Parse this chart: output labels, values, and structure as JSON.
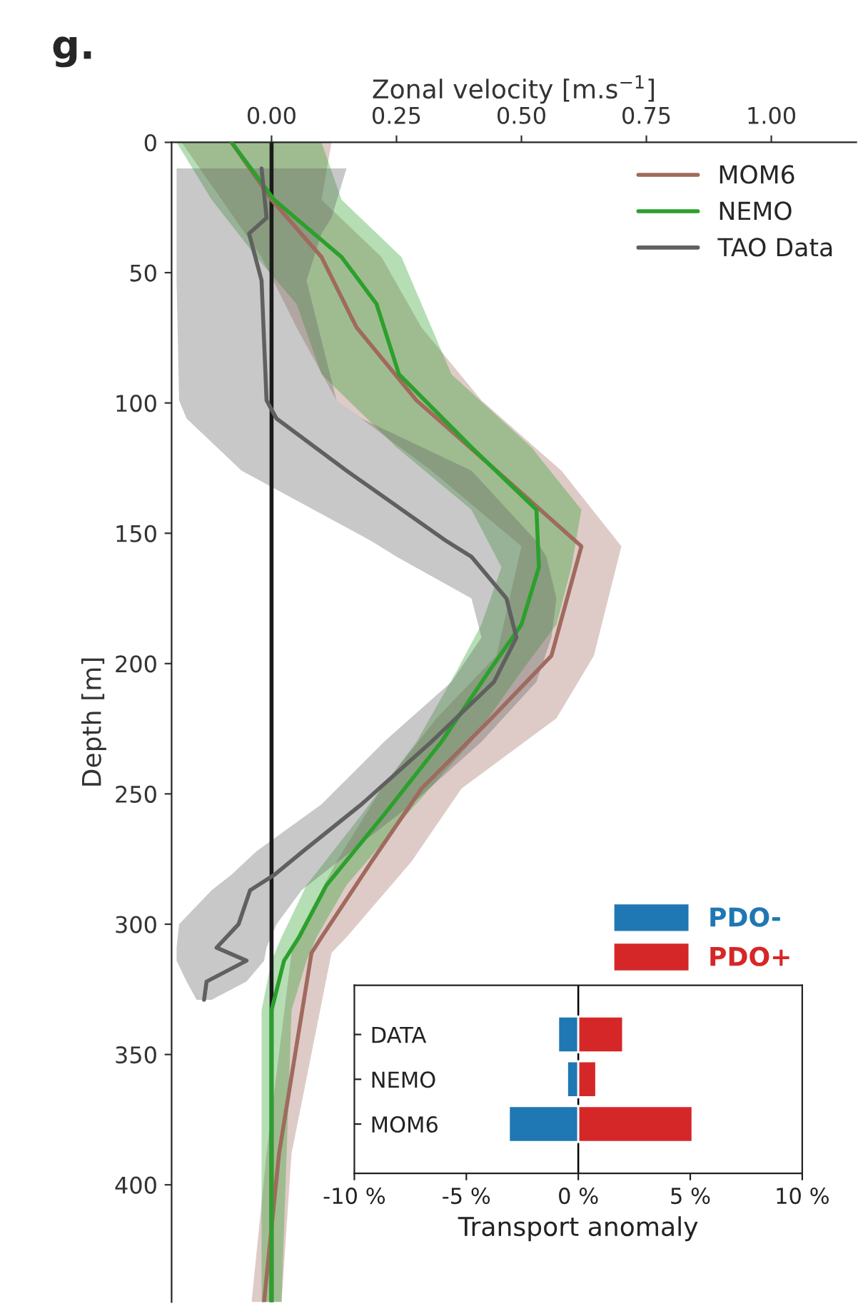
{
  "chart_data": [
    {
      "type": "line",
      "orientation": "horizontal",
      "title": "g.",
      "xlabel": "Zonal velocity [m.s$^{−1}$]",
      "ylabel": "Depth [m]",
      "xlim": [
        -0.2,
        1.17
      ],
      "xticks": [
        {
          "value": 0,
          "label": "0.00"
        },
        {
          "value": 0.25,
          "label": "0.25"
        },
        {
          "value": 0.5,
          "label": "0.50"
        },
        {
          "value": 0.75,
          "label": "0.75"
        },
        {
          "value": 1.0,
          "label": "1.00"
        }
      ],
      "ylim": [
        445,
        0
      ],
      "yticks": [
        0,
        50,
        100,
        150,
        200,
        250,
        300,
        350,
        400
      ],
      "legend": "top right",
      "grid": false,
      "ref_lines": [
        {
          "axis": "x",
          "value": 0,
          "color": "#1a1a1a"
        }
      ],
      "series": [
        {
          "name": "MOM6",
          "color": "#a06a5e",
          "x": [
            0,
            22,
            44,
            71,
            99,
            126,
            155,
            197,
            221,
            248,
            276,
            305,
            311,
            388,
            445
          ],
          "values": [
            -0.08,
            0.0,
            0.1,
            0.17,
            0.29,
            0.45,
            0.62,
            0.56,
            0.44,
            0.3,
            0.2,
            0.1,
            0.08,
            0.015,
            -0.015
          ],
          "lower": [
            -0.18,
            -0.1,
            -0.02,
            0.05,
            0.13,
            0.32,
            0.5,
            0.45,
            0.33,
            0.22,
            0.13,
            0.05,
            0.04,
            -0.01,
            -0.04
          ],
          "upper": [
            0.12,
            0.1,
            0.22,
            0.3,
            0.42,
            0.58,
            0.7,
            0.645,
            0.57,
            0.38,
            0.28,
            0.15,
            0.12,
            0.04,
            0.02
          ]
        },
        {
          "name": "NEMO",
          "color": "#2ca02c",
          "x": [
            0,
            22,
            44,
            62,
            89,
            117,
            141,
            163,
            185,
            203,
            230,
            258,
            285,
            305,
            314,
            333,
            445
          ],
          "values": [
            -0.08,
            0.005,
            0.14,
            0.21,
            0.255,
            0.4,
            0.53,
            0.535,
            0.5,
            0.435,
            0.34,
            0.225,
            0.11,
            0.055,
            0.025,
            0.0,
            0.0
          ],
          "lower": [
            -0.19,
            -0.12,
            -0.03,
            0.05,
            0.1,
            0.25,
            0.4,
            0.46,
            0.42,
            0.37,
            0.29,
            0.18,
            0.07,
            0.02,
            0.0,
            -0.02,
            -0.02
          ],
          "upper": [
            0.1,
            0.14,
            0.26,
            0.3,
            0.36,
            0.52,
            0.62,
            0.6,
            0.57,
            0.5,
            0.4,
            0.27,
            0.15,
            0.09,
            0.07,
            0.04,
            0.02
          ]
        },
        {
          "name": "TAO Data",
          "color": "#606060",
          "x": [
            10,
            29,
            35,
            53,
            99,
            106,
            126,
            153,
            159,
            175,
            190,
            207,
            230,
            254,
            272,
            281,
            287,
            300,
            309,
            314,
            322,
            329
          ],
          "values": [
            -0.02,
            -0.01,
            -0.045,
            -0.02,
            -0.01,
            0.01,
            0.15,
            0.35,
            0.4,
            0.47,
            0.49,
            0.445,
            0.32,
            0.18,
            0.063,
            0.006,
            -0.043,
            -0.066,
            -0.11,
            -0.05,
            -0.13,
            -0.135
          ],
          "lower": [
            -0.19,
            -0.19,
            -0.19,
            -0.19,
            -0.185,
            -0.17,
            -0.06,
            0.2,
            0.25,
            0.4,
            0.42,
            0.36,
            0.225,
            0.1,
            -0.03,
            -0.08,
            -0.12,
            -0.185,
            -0.19,
            -0.19,
            -0.17,
            -0.15
          ],
          "upper": [
            0.15,
            0.12,
            0.1,
            0.07,
            0.13,
            0.18,
            0.4,
            0.53,
            0.55,
            0.57,
            0.56,
            0.53,
            0.42,
            0.28,
            0.16,
            0.1,
            0.06,
            0.01,
            -0.01,
            -0.015,
            -0.05,
            -0.12
          ]
        }
      ]
    },
    {
      "type": "bar",
      "orientation": "horizontal",
      "xlabel": "Transport anomaly",
      "categories": [
        "DATA",
        "NEMO",
        "MOM6"
      ],
      "xlim": [
        -10,
        10
      ],
      "xticks": [
        {
          "value": -10,
          "label": "-10 %"
        },
        {
          "value": -5,
          "label": "-5 %"
        },
        {
          "value": 0,
          "label": "0 %"
        },
        {
          "value": 5,
          "label": "5 %"
        },
        {
          "value": 10,
          "label": "10 %"
        }
      ],
      "legend": "top right",
      "grid": false,
      "stacked": true,
      "ref_lines": [
        {
          "axis": "x",
          "value": 0,
          "color": "#000000"
        }
      ],
      "series": [
        {
          "name": "PDO-",
          "color": "#1f77b4",
          "values": [
            -0.9,
            -0.5,
            -3.1
          ]
        },
        {
          "name": "PDO+",
          "color": "#d62728",
          "values": [
            2.0,
            0.8,
            5.1
          ]
        }
      ]
    }
  ]
}
